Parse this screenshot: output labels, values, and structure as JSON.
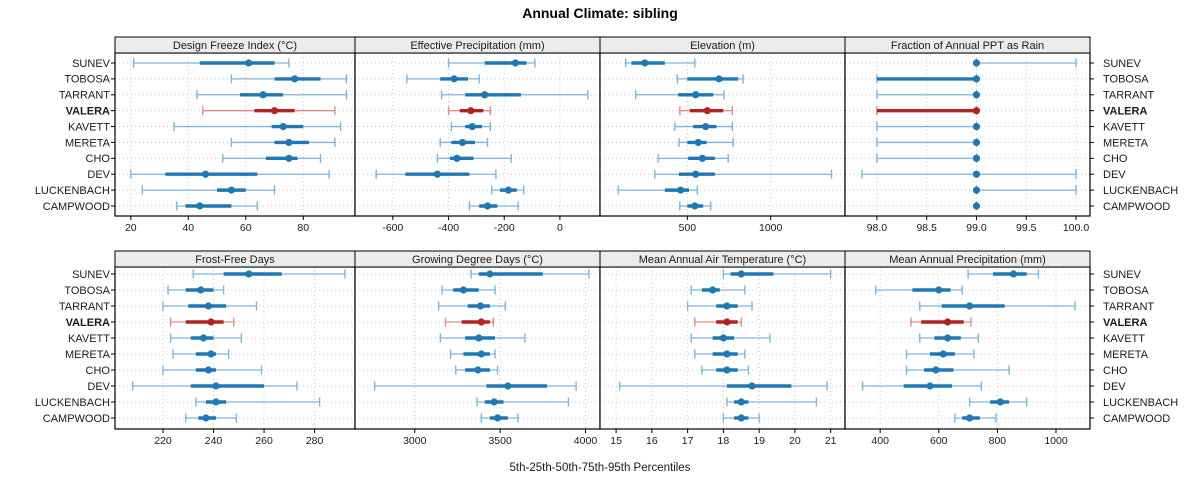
{
  "title": "Annual Climate: sibling",
  "caption": "5th-25th-50th-75th-95th Percentiles",
  "sites": [
    "SUNEV",
    "TOBOSA",
    "TARRANT",
    "VALERA",
    "KAVETT",
    "MERETA",
    "CHO",
    "DEV",
    "LUCKENBACH",
    "CAMPWOOD"
  ],
  "highlight_site": "VALERA",
  "colors": {
    "series_main": "#1f77b4",
    "series_light": "#7fb3d7",
    "highlight_main": "#b22222",
    "highlight_light": "#d88f8c",
    "strip_fill": "#ececec",
    "panel_border": "#000000",
    "grid": "#c9c9c9",
    "tick": "#000000"
  },
  "chart_data": {
    "type": "trellis-dotplot-percentiles",
    "title": "Annual Climate: sibling",
    "caption": "5th-25th-50th-75th-95th Percentiles",
    "percentiles": [
      "p5",
      "p25",
      "p50",
      "p75",
      "p95"
    ],
    "legend_position": "none",
    "grid": "dotted",
    "panels": [
      {
        "row": 0,
        "col": 0,
        "title": "Design Freeze Index (°C)",
        "xlim": [
          14.5,
          98
        ],
        "tick_values": [
          20,
          40,
          60,
          80
        ],
        "tick_labels": [
          "20",
          "40",
          "60",
          "80"
        ],
        "values": [
          [
            21,
            44,
            61,
            70,
            75
          ],
          [
            55,
            70,
            77,
            86,
            95
          ],
          [
            43,
            58,
            66,
            73,
            95
          ],
          [
            45,
            63,
            70,
            77,
            91
          ],
          [
            35,
            69,
            73,
            80,
            93
          ],
          [
            55,
            70,
            75,
            82,
            91
          ],
          [
            52,
            67,
            75,
            78,
            86
          ],
          [
            20,
            32,
            46,
            64,
            89
          ],
          [
            24,
            50,
            55,
            60,
            70
          ],
          [
            36,
            39,
            44,
            55,
            64
          ]
        ]
      },
      {
        "row": 0,
        "col": 1,
        "title": "Effective Precipitation (mm)",
        "xlim": [
          -736,
          144
        ],
        "tick_values": [
          -600,
          -400,
          -200,
          0
        ],
        "tick_labels": [
          "-600",
          "-400",
          "-200",
          "0"
        ],
        "values": [
          [
            -400,
            -270,
            -160,
            -120,
            -90
          ],
          [
            -550,
            -430,
            -380,
            -330,
            -290
          ],
          [
            -425,
            -340,
            -270,
            -140,
            100
          ],
          [
            -400,
            -360,
            -320,
            -275,
            -250
          ],
          [
            -390,
            -340,
            -315,
            -280,
            -250
          ],
          [
            -430,
            -390,
            -350,
            -305,
            -260
          ],
          [
            -440,
            -395,
            -370,
            -310,
            -175
          ],
          [
            -660,
            -555,
            -440,
            -325,
            -230
          ],
          [
            -245,
            -215,
            -185,
            -155,
            -130
          ],
          [
            -325,
            -290,
            -260,
            -225,
            -150
          ]
        ]
      },
      {
        "row": 0,
        "col": 2,
        "title": "Elevation (m)",
        "xlim": [
          -24,
          1446
        ],
        "tick_values": [
          500,
          1000
        ],
        "tick_labels": [
          "500",
          "1000"
        ],
        "values": [
          [
            130,
            165,
            245,
            365,
            545
          ],
          [
            440,
            500,
            690,
            805,
            835
          ],
          [
            190,
            445,
            550,
            655,
            720
          ],
          [
            455,
            515,
            620,
            715,
            770
          ],
          [
            425,
            535,
            610,
            675,
            770
          ],
          [
            450,
            500,
            565,
            615,
            775
          ],
          [
            325,
            505,
            590,
            665,
            745
          ],
          [
            305,
            450,
            550,
            665,
            1365
          ],
          [
            85,
            365,
            460,
            510,
            560
          ],
          [
            455,
            500,
            545,
            595,
            640
          ]
        ]
      },
      {
        "row": 0,
        "col": 3,
        "title": "Fraction of Annual PPT as Rain",
        "xlim": [
          97.68,
          100.14
        ],
        "tick_values": [
          98.0,
          98.5,
          99.0,
          99.5,
          100.0
        ],
        "tick_labels": [
          "98.0",
          "98.5",
          "99.0",
          "99.5",
          "100.0"
        ],
        "values": [
          [
            99,
            99,
            99,
            99,
            100
          ],
          [
            98,
            98,
            99,
            99,
            99
          ],
          [
            98,
            99,
            99,
            99,
            99
          ],
          [
            98,
            98,
            99,
            99,
            99
          ],
          [
            98,
            99,
            99,
            99,
            99
          ],
          [
            98,
            99,
            99,
            99,
            99
          ],
          [
            98,
            99,
            99,
            99,
            99
          ],
          [
            97.85,
            99,
            99,
            99,
            100
          ],
          [
            99,
            99,
            99,
            99,
            100
          ],
          [
            99,
            99,
            99,
            99,
            99
          ]
        ]
      },
      {
        "row": 1,
        "col": 0,
        "title": "Frost-Free Days",
        "xlim": [
          201,
          296
        ],
        "tick_values": [
          220,
          240,
          260,
          280
        ],
        "tick_labels": [
          "220",
          "240",
          "260",
          "280"
        ],
        "values": [
          [
            232,
            244,
            254,
            267,
            292
          ],
          [
            222,
            229,
            235,
            240,
            244
          ],
          [
            220,
            230,
            238,
            245,
            257
          ],
          [
            223,
            229,
            239,
            244,
            248
          ],
          [
            223,
            231,
            236,
            240,
            251
          ],
          [
            224,
            233,
            239,
            241,
            246
          ],
          [
            220,
            233,
            238,
            241,
            259
          ],
          [
            208,
            231,
            241,
            260,
            273
          ],
          [
            233,
            237,
            241,
            245,
            282
          ],
          [
            229,
            234,
            237,
            241,
            249
          ]
        ]
      },
      {
        "row": 1,
        "col": 1,
        "title": "Growing Degree Days (°C)",
        "xlim": [
          2650,
          4085
        ],
        "tick_values": [
          3000,
          3500,
          4000
        ],
        "tick_labels": [
          "3000",
          "3500",
          "4000"
        ],
        "values": [
          [
            3330,
            3375,
            3440,
            3750,
            4020
          ],
          [
            3160,
            3225,
            3285,
            3375,
            3470
          ],
          [
            3140,
            3310,
            3385,
            3440,
            3530
          ],
          [
            3180,
            3275,
            3390,
            3440,
            3460
          ],
          [
            3150,
            3295,
            3375,
            3470,
            3645
          ],
          [
            3210,
            3285,
            3390,
            3440,
            3470
          ],
          [
            3240,
            3295,
            3370,
            3440,
            3485
          ],
          [
            2765,
            3420,
            3545,
            3775,
            3945
          ],
          [
            3365,
            3410,
            3465,
            3520,
            3900
          ],
          [
            3390,
            3440,
            3485,
            3545,
            3605
          ]
        ]
      },
      {
        "row": 1,
        "col": 2,
        "title": "Mean Annual Air Temperature (°C)",
        "xlim": [
          14.55,
          21.4
        ],
        "tick_values": [
          15,
          16,
          17,
          18,
          19,
          20,
          21
        ],
        "tick_labels": [
          "15",
          "16",
          "17",
          "18",
          "19",
          "20",
          "21"
        ],
        "values": [
          [
            18.0,
            18.2,
            18.5,
            19.4,
            21.0
          ],
          [
            17.1,
            17.4,
            17.7,
            17.9,
            18.6
          ],
          [
            17.0,
            17.8,
            18.1,
            18.4,
            18.8
          ],
          [
            17.2,
            17.8,
            18.1,
            18.4,
            18.5
          ],
          [
            17.1,
            17.7,
            18.0,
            18.3,
            19.3
          ],
          [
            17.2,
            17.7,
            18.1,
            18.4,
            18.6
          ],
          [
            17.4,
            17.8,
            18.1,
            18.4,
            18.7
          ],
          [
            15.1,
            18.1,
            18.8,
            19.9,
            20.9
          ],
          [
            18.1,
            18.3,
            18.5,
            18.7,
            20.6
          ],
          [
            18.0,
            18.3,
            18.5,
            18.7,
            19.0
          ]
        ]
      },
      {
        "row": 1,
        "col": 3,
        "title": "Mean Annual Precipitation (mm)",
        "xlim": [
          280,
          1116
        ],
        "tick_values": [
          400,
          600,
          800,
          1000
        ],
        "tick_labels": [
          "400",
          "600",
          "800",
          "1000"
        ],
        "values": [
          [
            700,
            785,
            855,
            900,
            940
          ],
          [
            385,
            510,
            600,
            640,
            680
          ],
          [
            535,
            610,
            705,
            825,
            1065
          ],
          [
            505,
            540,
            630,
            685,
            710
          ],
          [
            535,
            585,
            630,
            675,
            735
          ],
          [
            490,
            570,
            615,
            655,
            720
          ],
          [
            490,
            550,
            590,
            650,
            840
          ],
          [
            340,
            480,
            570,
            645,
            745
          ],
          [
            705,
            775,
            810,
            840,
            900
          ],
          [
            655,
            680,
            705,
            740,
            795
          ]
        ]
      }
    ]
  }
}
